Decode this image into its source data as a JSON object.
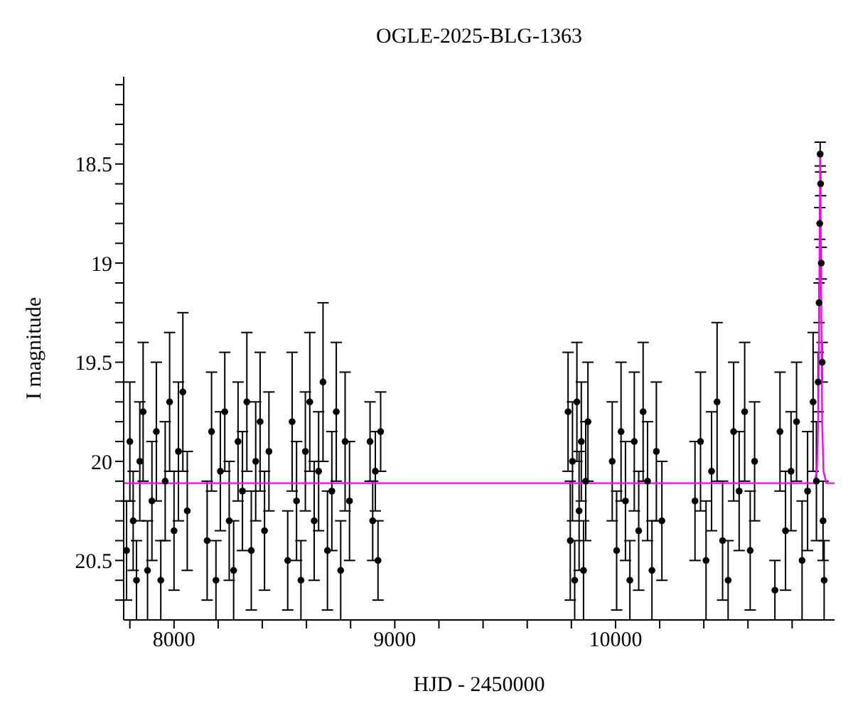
{
  "chart_data": {
    "type": "scatter",
    "title": "OGLE-2025-BLG-1363",
    "xlabel": "HJD - 2450000",
    "ylabel": "I magnitude",
    "xlim": [
      7772,
      10992
    ],
    "ylim": [
      20.8,
      18.06
    ],
    "xticks": [
      {
        "value": 7800,
        "label": null
      },
      8000,
      {
        "value": 8200,
        "label": null
      },
      {
        "value": 8400,
        "label": null
      },
      {
        "value": 8600,
        "label": null
      },
      {
        "value": 8800,
        "label": null
      },
      9000,
      {
        "value": 9200,
        "label": null
      },
      {
        "value": 9400,
        "label": null
      },
      {
        "value": 9600,
        "label": null
      },
      {
        "value": 9800,
        "label": null
      },
      10000,
      {
        "value": 10200,
        "label": null
      },
      {
        "value": 10400,
        "label": null
      },
      {
        "value": 10600,
        "label": null
      },
      {
        "value": 10800,
        "label": null
      }
    ],
    "yticks": [
      {
        "value": 18.1,
        "label": null
      },
      {
        "value": 18.2,
        "label": null
      },
      {
        "value": 18.3,
        "label": null
      },
      {
        "value": 18.4,
        "label": null
      },
      18.5,
      {
        "value": 18.6,
        "label": null
      },
      {
        "value": 18.7,
        "label": null
      },
      {
        "value": 18.8,
        "label": null
      },
      {
        "value": 18.9,
        "label": null
      },
      19,
      {
        "value": 19.1,
        "label": null
      },
      {
        "value": 19.2,
        "label": null
      },
      {
        "value": 19.3,
        "label": null
      },
      {
        "value": 19.4,
        "label": null
      },
      19.5,
      {
        "value": 19.6,
        "label": null
      },
      {
        "value": 19.7,
        "label": null
      },
      {
        "value": 19.8,
        "label": null
      },
      {
        "value": 19.9,
        "label": null
      },
      20,
      {
        "value": 20.1,
        "label": null
      },
      {
        "value": 20.2,
        "label": null
      },
      {
        "value": 20.3,
        "label": null
      },
      {
        "value": 20.4,
        "label": null
      },
      20.5,
      {
        "value": 20.6,
        "label": null
      },
      {
        "value": 20.7,
        "label": null
      }
    ],
    "grid": false,
    "legend": false,
    "series": [
      {
        "marker": "circle",
        "color": "#000000",
        "x": [
          7785,
          7800,
          7815,
          7830,
          7845,
          7860,
          7880,
          7900,
          7920,
          7940,
          7960,
          7980,
          8000,
          8020,
          8040,
          8060,
          8150,
          8170,
          8190,
          8210,
          8230,
          8250,
          8270,
          8290,
          8310,
          8330,
          8350,
          8370,
          8390,
          8410,
          8430,
          8515,
          8535,
          8555,
          8575,
          8595,
          8615,
          8635,
          8655,
          8675,
          8695,
          8715,
          8735,
          8755,
          8775,
          8795,
          8888,
          8900,
          8912,
          8924,
          8936,
          9785,
          9795,
          9805,
          9815,
          9825,
          9835,
          9845,
          9855,
          9865,
          9875,
          9985,
          10005,
          10025,
          10045,
          10065,
          10085,
          10105,
          10125,
          10145,
          10165,
          10185,
          10210,
          10360,
          10385,
          10410,
          10435,
          10460,
          10485,
          10510,
          10535,
          10560,
          10585,
          10610,
          10630,
          10722,
          10745,
          10770,
          10795,
          10820,
          10845,
          10870,
          10895,
          10910,
          10918,
          10922,
          10925,
          10927,
          10929,
          10932,
          10936,
          10940,
          10945
        ],
        "values": [
          20.45,
          19.9,
          20.3,
          20.6,
          20.0,
          19.75,
          20.55,
          20.2,
          19.85,
          20.6,
          20.1,
          19.7,
          20.35,
          19.95,
          19.65,
          20.25,
          20.4,
          19.85,
          20.6,
          20.05,
          19.75,
          20.3,
          20.55,
          19.9,
          20.15,
          19.7,
          20.45,
          20.0,
          19.8,
          20.35,
          19.95,
          20.5,
          19.8,
          20.2,
          20.6,
          19.95,
          19.7,
          20.3,
          20.05,
          19.6,
          20.45,
          20.15,
          19.75,
          20.55,
          19.9,
          20.2,
          19.9,
          20.3,
          20.05,
          20.5,
          19.85,
          19.75,
          20.4,
          20.0,
          20.6,
          19.7,
          20.25,
          19.9,
          20.55,
          20.1,
          19.8,
          20.0,
          20.45,
          19.85,
          20.2,
          20.6,
          19.9,
          20.35,
          19.75,
          20.1,
          20.55,
          19.95,
          20.3,
          20.2,
          19.9,
          20.5,
          20.05,
          19.7,
          20.4,
          20.6,
          19.85,
          20.15,
          19.75,
          20.45,
          20.0,
          20.65,
          19.85,
          20.35,
          20.05,
          19.8,
          20.5,
          20.15,
          19.7,
          20.1,
          19.6,
          19.2,
          18.8,
          18.45,
          18.6,
          19.0,
          19.5,
          20.3,
          20.6
        ],
        "errors": [
          0.25,
          0.3,
          0.25,
          0.2,
          0.3,
          0.35,
          0.25,
          0.3,
          0.35,
          0.2,
          0.3,
          0.35,
          0.3,
          0.35,
          0.4,
          0.3,
          0.3,
          0.3,
          0.2,
          0.3,
          0.3,
          0.3,
          0.25,
          0.3,
          0.3,
          0.35,
          0.3,
          0.3,
          0.35,
          0.3,
          0.3,
          0.25,
          0.35,
          0.3,
          0.2,
          0.3,
          0.35,
          0.3,
          0.3,
          0.4,
          0.3,
          0.3,
          0.35,
          0.25,
          0.35,
          0.3,
          0.2,
          0.2,
          0.2,
          0.2,
          0.2,
          0.3,
          0.3,
          0.3,
          0.2,
          0.3,
          0.3,
          0.3,
          0.25,
          0.3,
          0.3,
          0.3,
          0.3,
          0.35,
          0.3,
          0.2,
          0.35,
          0.3,
          0.35,
          0.3,
          0.25,
          0.35,
          0.3,
          0.3,
          0.35,
          0.3,
          0.3,
          0.4,
          0.3,
          0.2,
          0.35,
          0.3,
          0.35,
          0.3,
          0.3,
          0.15,
          0.3,
          0.3,
          0.3,
          0.3,
          0.3,
          0.3,
          0.35,
          0.3,
          0.15,
          0.1,
          0.08,
          0.06,
          0.06,
          0.08,
          0.1,
          0.2,
          0.2
        ]
      },
      {
        "type": "line",
        "color": "#ff00ff",
        "x": [
          7772,
          10900,
          10912,
          10918,
          10922,
          10925,
          10927,
          10929,
          10932,
          10936,
          10942,
          10955,
          10992
        ],
        "values": [
          20.11,
          20.11,
          20.05,
          19.8,
          19.3,
          18.8,
          18.45,
          18.7,
          19.2,
          19.8,
          20.05,
          20.11,
          20.11
        ]
      }
    ]
  }
}
